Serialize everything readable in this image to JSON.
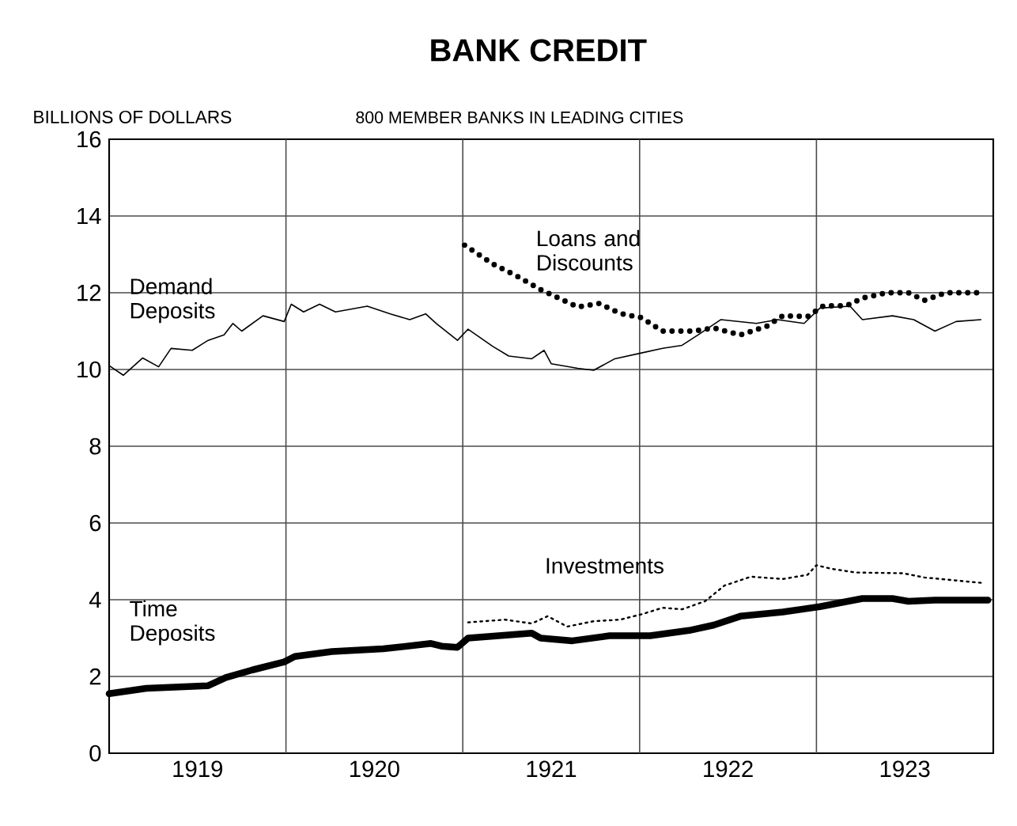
{
  "chart_data": {
    "type": "line",
    "title": "BANK CREDIT",
    "subtitle": "800 MEMBER BANKS IN LEADING CITIES",
    "ylabel": "BILLIONS OF DOLLARS",
    "xlim": [
      1919,
      1924
    ],
    "ylim": [
      0,
      16
    ],
    "xticks": [
      {
        "value": 1919.5,
        "label": "1919"
      },
      {
        "value": 1920,
        "label": null
      },
      {
        "value": 1920.5,
        "label": "1920"
      },
      {
        "value": 1921,
        "label": null
      },
      {
        "value": 1921.5,
        "label": "1921"
      },
      {
        "value": 1922,
        "label": null
      },
      {
        "value": 1922.5,
        "label": "1922"
      },
      {
        "value": 1923,
        "label": null
      },
      {
        "value": 1923.5,
        "label": "1923"
      }
    ],
    "yticks": [
      0,
      2,
      4,
      6,
      8,
      10,
      12,
      14,
      16
    ],
    "grid": true,
    "series": [
      {
        "name": "Demand Deposits",
        "color": "#000000",
        "line_style": "solid",
        "x": [
          1919.0,
          1919.08,
          1919.19,
          1919.28,
          1919.35,
          1919.47,
          1919.56,
          1919.65,
          1919.7,
          1919.75,
          1919.87,
          1919.99,
          1920.03,
          1920.1,
          1920.19,
          1920.28,
          1920.46,
          1920.59,
          1920.7,
          1920.79,
          1920.85,
          1920.97,
          1921.03,
          1921.17,
          1921.26,
          1921.39,
          1921.46,
          1921.5,
          1921.65,
          1921.74,
          1921.86,
          1922.01,
          1922.13,
          1922.24,
          1922.33,
          1922.46,
          1922.66,
          1922.78,
          1922.93,
          1923.02,
          1923.19,
          1923.26,
          1923.43,
          1923.55,
          1923.67,
          1923.79,
          1923.93
        ],
        "values": [
          10.1,
          9.85,
          10.3,
          10.07,
          10.55,
          10.5,
          10.76,
          10.9,
          11.2,
          11.0,
          11.4,
          11.25,
          11.7,
          11.5,
          11.7,
          11.5,
          11.65,
          11.45,
          11.3,
          11.45,
          11.2,
          10.76,
          11.05,
          10.6,
          10.35,
          10.28,
          10.5,
          10.15,
          10.03,
          9.98,
          10.28,
          10.43,
          10.55,
          10.63,
          10.9,
          11.3,
          11.2,
          11.3,
          11.2,
          11.6,
          11.65,
          11.3,
          11.4,
          11.3,
          11.0,
          11.25,
          11.3
        ]
      },
      {
        "name": "Loans and Discounts",
        "color": "#000000",
        "line_style": "dotted",
        "x": [
          1921.01,
          1921.17,
          1921.32,
          1921.44,
          1921.65,
          1921.77,
          1921.89,
          1922.01,
          1922.13,
          1922.3,
          1922.42,
          1922.57,
          1922.72,
          1922.81,
          1922.95,
          1923.04,
          1923.17,
          1923.26,
          1923.4,
          1923.52,
          1923.61,
          1923.73,
          1923.93
        ],
        "values": [
          13.24,
          12.75,
          12.4,
          12.08,
          11.63,
          11.72,
          11.46,
          11.35,
          11.0,
          11.0,
          11.08,
          10.9,
          11.13,
          11.4,
          11.38,
          11.66,
          11.66,
          11.86,
          12.0,
          12.0,
          11.8,
          12.0,
          12.0
        ]
      },
      {
        "name": "Investments",
        "color": "#000000",
        "line_style": "dotted",
        "x": [
          1921.03,
          1921.24,
          1921.39,
          1921.48,
          1921.59,
          1921.74,
          1921.89,
          1922.01,
          1922.13,
          1922.24,
          1922.37,
          1922.48,
          1922.63,
          1922.81,
          1922.95,
          1923.0,
          1923.08,
          1923.22,
          1923.49,
          1923.61,
          1923.93
        ],
        "values": [
          3.41,
          3.48,
          3.38,
          3.57,
          3.3,
          3.44,
          3.48,
          3.62,
          3.79,
          3.75,
          3.96,
          4.37,
          4.6,
          4.54,
          4.65,
          4.9,
          4.81,
          4.71,
          4.69,
          4.58,
          4.44
        ]
      },
      {
        "name": "Time Deposits",
        "color": "#000000",
        "line_style": "solid",
        "x": [
          1919.0,
          1919.21,
          1919.56,
          1919.66,
          1919.81,
          1919.99,
          1920.05,
          1920.26,
          1920.55,
          1920.82,
          1920.88,
          1920.97,
          1921.03,
          1921.39,
          1921.44,
          1921.62,
          1921.83,
          1922.06,
          1922.28,
          1922.42,
          1922.57,
          1922.81,
          1923.02,
          1923.26,
          1923.43,
          1923.52,
          1923.67,
          1923.97
        ],
        "values": [
          1.55,
          1.69,
          1.76,
          1.97,
          2.17,
          2.38,
          2.52,
          2.65,
          2.72,
          2.86,
          2.79,
          2.76,
          3.0,
          3.13,
          3.0,
          2.93,
          3.06,
          3.06,
          3.2,
          3.34,
          3.57,
          3.68,
          3.82,
          4.03,
          4.03,
          3.96,
          3.99,
          3.99
        ]
      }
    ]
  }
}
